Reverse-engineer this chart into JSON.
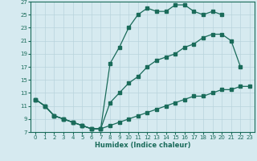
{
  "xlabel": "Humidex (Indice chaleur)",
  "bg_color": "#d6eaf0",
  "grid_color": "#b8d4dc",
  "line_color": "#1a6b5a",
  "xlim": [
    -0.5,
    23.5
  ],
  "ylim": [
    7,
    27
  ],
  "xticks": [
    0,
    1,
    2,
    3,
    4,
    5,
    6,
    7,
    8,
    9,
    10,
    11,
    12,
    13,
    14,
    15,
    16,
    17,
    18,
    19,
    20,
    21,
    22,
    23
  ],
  "yticks": [
    7,
    9,
    11,
    13,
    15,
    17,
    19,
    21,
    23,
    25,
    27
  ],
  "line1_x": [
    0,
    1,
    2,
    3,
    4,
    5,
    6,
    7,
    8,
    9,
    10,
    11,
    12,
    13,
    14,
    15,
    16,
    17,
    18,
    19,
    20
  ],
  "line1_y": [
    12,
    11,
    9.5,
    9,
    8.5,
    8,
    7.5,
    7.5,
    17.5,
    20,
    23,
    25,
    26,
    25.5,
    25.5,
    26.5,
    26.5,
    25.5,
    25,
    25.5,
    25
  ],
  "line2_x": [
    0,
    1,
    2,
    3,
    4,
    5,
    6,
    7,
    8,
    9,
    10,
    11,
    12,
    13,
    14,
    15,
    16,
    17,
    18,
    19,
    20,
    21,
    22
  ],
  "line2_y": [
    12,
    11,
    9.5,
    9,
    8.5,
    8,
    7.5,
    7.5,
    11.5,
    13,
    14.5,
    15.5,
    17,
    18,
    18.5,
    19,
    20,
    20.5,
    21.5,
    22,
    22,
    21,
    17
  ],
  "line3_x": [
    0,
    1,
    2,
    3,
    4,
    5,
    6,
    7,
    8,
    9,
    10,
    11,
    12,
    13,
    14,
    15,
    16,
    17,
    18,
    19,
    20,
    21,
    22,
    23
  ],
  "line3_y": [
    12,
    11,
    9.5,
    9,
    8.5,
    8,
    7.5,
    7.5,
    8,
    8.5,
    9,
    9.5,
    10,
    10.5,
    11,
    11.5,
    12,
    12.5,
    12.5,
    13,
    13.5,
    13.5,
    14,
    14
  ]
}
